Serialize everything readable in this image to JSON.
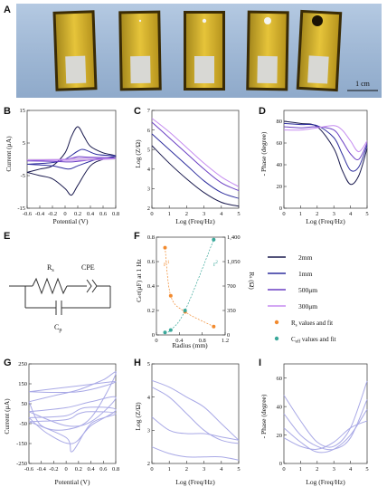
{
  "panels": {
    "A": {
      "label": "A",
      "scale_bar": "1 cm"
    },
    "B": {
      "label": "B",
      "xlabel": "Potential (V)",
      "ylabel": "Current (μA)",
      "xticks": [
        "-0.6",
        "-0.4",
        "-0.2",
        "0",
        "0.2",
        "0.4",
        "0.6",
        "0.8"
      ],
      "yticks": [
        "-15",
        "-5",
        "5",
        "15"
      ]
    },
    "C": {
      "label": "C",
      "xlabel": "Log (Freq/Hz)",
      "ylabel": "Log (Z/Ω)",
      "xticks": [
        "0",
        "1",
        "2",
        "3",
        "4",
        "5"
      ],
      "yticks": [
        "2",
        "3",
        "4",
        "5",
        "6",
        "7"
      ]
    },
    "D": {
      "label": "D",
      "xlabel": "Log (Freq/Hz)",
      "ylabel": "- Phase (degree)",
      "xticks": [
        "0",
        "1",
        "2",
        "3",
        "4",
        "5"
      ],
      "yticks": [
        "0",
        "20",
        "40",
        "60",
        "80"
      ]
    },
    "E": {
      "label": "E",
      "rs": "R",
      "rs_sub": "s",
      "cpe": "CPE",
      "cp": "C",
      "cp_sub": "p"
    },
    "F": {
      "label": "F",
      "xlabel": "Radius (mm)",
      "ylabel_left": "C",
      "ylabel_left_sub": "eff",
      "ylabel_left_rest": "(μF) at 1 Hz",
      "ylabel_right": "R",
      "ylabel_right_sub": "s",
      "ylabel_right_rest": " (Ω)",
      "xticks": [
        "0",
        "0.4",
        "0.8",
        "1.2"
      ],
      "yticks_left": [
        "0",
        "0.2",
        "0.4",
        "0.6",
        "0.8"
      ],
      "yticks_right": [
        "0",
        "350",
        "700",
        "1,050",
        "1,400"
      ],
      "ann_r": "r",
      "ann_r_sup1": "-1",
      "ann_r_sup2": "2"
    },
    "G": {
      "label": "G",
      "xlabel": "Potential (V)",
      "ylabel": "Current (μA)",
      "xticks": [
        "-0.6",
        "-0.4",
        "-0.2",
        "0",
        "0.2",
        "0.4",
        "0.6",
        "0.8"
      ],
      "yticks": [
        "-250",
        "-150",
        "-50",
        "50",
        "150",
        "250"
      ]
    },
    "H": {
      "label": "H",
      "xlabel": "Log (Freq/Hz)",
      "ylabel": "Log (Z/Ω)",
      "xticks": [
        "0",
        "1",
        "2",
        "3",
        "4",
        "5"
      ],
      "yticks": [
        "2",
        "3",
        "4",
        "5"
      ]
    },
    "I": {
      "label": "I",
      "xlabel": "Log (Freq/Hz)",
      "ylabel": "- Phase (degree)",
      "xticks": [
        "0",
        "1",
        "2",
        "3",
        "4",
        "5"
      ],
      "yticks": [
        "0",
        "20",
        "40",
        "60"
      ]
    }
  },
  "legend": [
    {
      "text": "2mm",
      "color": "#1a1a4e"
    },
    {
      "text": "1mm",
      "color": "#2e2e9e"
    },
    {
      "text": "500μm",
      "color": "#6a3fc4"
    },
    {
      "text": "300μm",
      "color": "#c58cf0"
    }
  ],
  "legend_dots": [
    {
      "text": "R",
      "sub": "s",
      "rest": " values and fit",
      "color": "#f28a2e"
    },
    {
      "text": "C",
      "sub": "eff",
      "rest": " values and fit",
      "color": "#3aa89a"
    }
  ],
  "chart_data": [
    {
      "panel": "B",
      "type": "line",
      "series": [
        {
          "name": "2mm",
          "color": "#1a1a4e",
          "x": [
            -0.6,
            -0.4,
            -0.2,
            0,
            0.1,
            0.2,
            0.3,
            0.4,
            0.6,
            0.8,
            0.6,
            0.4,
            0.2,
            0.1,
            0,
            -0.2,
            -0.4,
            -0.6
          ],
          "y": [
            -4,
            -3,
            -2,
            2,
            7,
            10,
            7,
            4,
            2,
            1,
            0,
            -2,
            -8,
            -11,
            -9,
            -6,
            -5,
            -4
          ]
        },
        {
          "name": "1mm",
          "color": "#2e2e9e",
          "x": [
            -0.6,
            -0.2,
            0,
            0.2,
            0.3,
            0.5,
            0.8,
            0.5,
            0.2,
            0.05,
            -0.2,
            -0.6
          ],
          "y": [
            -1.5,
            -1,
            0,
            2.5,
            3,
            1.5,
            1,
            0,
            -2,
            -3,
            -2,
            -1.5
          ]
        },
        {
          "name": "500μm",
          "color": "#6a3fc4",
          "x": [
            -0.6,
            0,
            0.2,
            0.4,
            0.8,
            0.4,
            0.1,
            -0.2,
            -0.6
          ],
          "y": [
            -0.5,
            0,
            0.8,
            0.6,
            0.4,
            -0.2,
            -0.8,
            -0.6,
            -0.5
          ]
        },
        {
          "name": "300μm",
          "color": "#c58cf0",
          "x": [
            -0.6,
            0,
            0.2,
            0.8,
            0.2,
            -0.6
          ],
          "y": [
            -0.2,
            0,
            0.3,
            0.2,
            -0.3,
            -0.2
          ]
        }
      ]
    },
    {
      "panel": "C",
      "type": "line",
      "series": [
        {
          "name": "2mm",
          "color": "#1a1a4e",
          "x": [
            0,
            1,
            2,
            3,
            4,
            5
          ],
          "y": [
            5.2,
            4.3,
            3.5,
            2.8,
            2.3,
            2.1
          ]
        },
        {
          "name": "1mm",
          "color": "#2e2e9e",
          "x": [
            0,
            1,
            2,
            3,
            4,
            5
          ],
          "y": [
            5.8,
            5.0,
            4.2,
            3.4,
            2.8,
            2.5
          ]
        },
        {
          "name": "500μm",
          "color": "#6a3fc4",
          "x": [
            0,
            1,
            2,
            3,
            4,
            5
          ],
          "y": [
            6.4,
            5.6,
            4.8,
            4.0,
            3.3,
            2.9
          ]
        },
        {
          "name": "300μm",
          "color": "#c58cf0",
          "x": [
            0,
            1,
            2,
            3,
            4,
            5
          ],
          "y": [
            6.6,
            5.9,
            5.1,
            4.3,
            3.6,
            3.1
          ]
        }
      ]
    },
    {
      "panel": "D",
      "type": "line",
      "series": [
        {
          "name": "2mm",
          "color": "#1a1a4e",
          "x": [
            0,
            1,
            2,
            3,
            3.5,
            4,
            4.5,
            5
          ],
          "y": [
            80,
            78,
            75,
            55,
            35,
            22,
            30,
            55
          ]
        },
        {
          "name": "1mm",
          "color": "#2e2e9e",
          "x": [
            0,
            1,
            2,
            3,
            3.5,
            4,
            4.5,
            5
          ],
          "y": [
            78,
            77,
            76,
            65,
            50,
            35,
            38,
            58
          ]
        },
        {
          "name": "500μm",
          "color": "#6a3fc4",
          "x": [
            0,
            1,
            2,
            3,
            3.5,
            4,
            4.5,
            5
          ],
          "y": [
            75,
            74,
            75,
            72,
            62,
            50,
            45,
            60
          ]
        },
        {
          "name": "300μm",
          "color": "#c58cf0",
          "x": [
            0,
            1,
            2,
            3,
            3.5,
            4,
            4.5,
            5
          ],
          "y": [
            72,
            72,
            74,
            76,
            72,
            62,
            52,
            62
          ]
        }
      ]
    },
    {
      "panel": "F",
      "type": "scatter",
      "series": [
        {
          "name": "Rs",
          "color": "#f28a2e",
          "axis": "right",
          "x": [
            0.15,
            0.25,
            0.5,
            1.0
          ],
          "y": [
            1250,
            560,
            330,
            120
          ]
        },
        {
          "name": "Ceff",
          "color": "#3aa89a",
          "axis": "left",
          "x": [
            0.15,
            0.25,
            0.5,
            1.0
          ],
          "y": [
            0.02,
            0.04,
            0.2,
            0.78
          ]
        }
      ]
    },
    {
      "panel": "G",
      "type": "line",
      "series": [
        {
          "x": [
            -0.6,
            0,
            0.4,
            0.8,
            0.4,
            0,
            -0.6
          ],
          "y": [
            10,
            30,
            60,
            80,
            -40,
            -60,
            10
          ]
        },
        {
          "x": [
            -0.6,
            -0.2,
            0.2,
            0.6,
            0.8,
            0.4,
            0,
            -0.4,
            -0.6
          ],
          "y": [
            60,
            90,
            120,
            170,
            200,
            -20,
            -80,
            -60,
            60
          ]
        },
        {
          "x": [
            -0.6,
            0,
            0.3,
            0.8,
            0.4,
            0.1,
            -0.3,
            -0.6
          ],
          "y": [
            -20,
            -10,
            30,
            20,
            -60,
            -150,
            -100,
            -20
          ]
        },
        {
          "x": [
            -0.6,
            0,
            0.2,
            0.4,
            0.8,
            0.4,
            0.1,
            0,
            -0.6
          ],
          "y": [
            -40,
            -30,
            0,
            10,
            0,
            -50,
            -190,
            -120,
            -40
          ]
        },
        {
          "x": [
            -0.6,
            0.2,
            0.8,
            0.2,
            -0.6
          ],
          "y": [
            110,
            140,
            160,
            110,
            110
          ]
        }
      ]
    },
    {
      "panel": "H",
      "type": "line",
      "series": [
        {
          "x": [
            0,
            1,
            2,
            3,
            4,
            5
          ],
          "y": [
            4.5,
            4.3,
            4.0,
            3.7,
            3.2,
            2.7
          ]
        },
        {
          "x": [
            0,
            1,
            2,
            3,
            4,
            5
          ],
          "y": [
            4.3,
            4.0,
            3.5,
            3.0,
            2.7,
            2.6
          ]
        },
        {
          "x": [
            0,
            1,
            2,
            3,
            4,
            5
          ],
          "y": [
            3.4,
            3.0,
            2.9,
            2.9,
            2.8,
            2.7
          ]
        },
        {
          "x": [
            0,
            1,
            2,
            3,
            4,
            5
          ],
          "y": [
            2.5,
            2.3,
            2.2,
            2.2,
            2.2,
            2.1
          ]
        }
      ]
    },
    {
      "panel": "I",
      "type": "line",
      "series": [
        {
          "x": [
            0,
            1,
            2,
            3,
            4,
            5
          ],
          "y": [
            48,
            30,
            15,
            12,
            25,
            58
          ]
        },
        {
          "x": [
            0,
            1,
            2,
            3,
            4,
            5
          ],
          "y": [
            35,
            20,
            12,
            10,
            18,
            45
          ]
        },
        {
          "x": [
            0,
            1,
            2,
            3,
            4,
            5
          ],
          "y": [
            25,
            15,
            8,
            10,
            20,
            38
          ]
        },
        {
          "x": [
            0,
            1,
            2,
            3,
            4,
            5
          ],
          "y": [
            18,
            12,
            10,
            15,
            25,
            30
          ]
        }
      ]
    }
  ]
}
